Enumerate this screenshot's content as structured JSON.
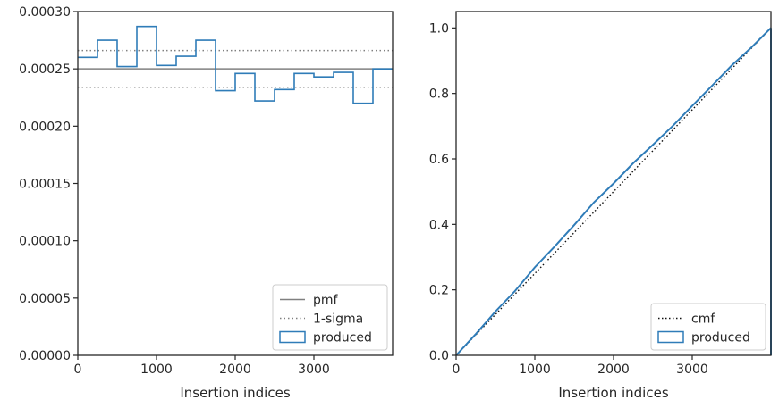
{
  "chart_data": [
    {
      "type": "step",
      "xlabel": "Insertion indices",
      "ylabel": "",
      "xlim": [
        0,
        4000
      ],
      "ylim": [
        0,
        0.0003
      ],
      "xticks": [
        0,
        1000,
        2000,
        3000
      ],
      "yticks": [
        0,
        5e-05,
        0.0001,
        0.00015,
        0.0002,
        0.00025,
        0.0003
      ],
      "ytick_labels": [
        "0.00000",
        "0.00005",
        "0.00010",
        "0.00015",
        "0.00020",
        "0.00025",
        "0.00030"
      ],
      "reference_lines": {
        "pmf": 0.00025,
        "sigma_upper": 0.000266,
        "sigma_lower": 0.000234
      },
      "series": [
        {
          "name": "produced",
          "bin_edges": [
            0,
            250,
            500,
            750,
            1000,
            1250,
            1500,
            1750,
            2000,
            2250,
            2500,
            2750,
            3000,
            3250,
            3500,
            3750,
            4000
          ],
          "values": [
            0.00026,
            0.000275,
            0.000252,
            0.000287,
            0.000253,
            0.000261,
            0.000275,
            0.000231,
            0.000246,
            0.000222,
            0.000232,
            0.000246,
            0.000243,
            0.000247,
            0.00022,
            0.00025
          ]
        }
      ],
      "legend": {
        "position": "lower-right",
        "entries": [
          {
            "label": "pmf",
            "style": "solid-gray"
          },
          {
            "label": "1-sigma",
            "style": "dotted-gray"
          },
          {
            "label": "produced",
            "style": "box-blue"
          }
        ]
      },
      "colors": {
        "produced": "#2f7cb8",
        "pmf": "#808080",
        "sigma": "#808080"
      }
    },
    {
      "type": "line",
      "xlabel": "Insertion indices",
      "ylabel": "",
      "xlim": [
        0,
        4000
      ],
      "ylim": [
        0,
        1.05
      ],
      "xticks": [
        0,
        1000,
        2000,
        3000
      ],
      "yticks": [
        0,
        0.2,
        0.4,
        0.6,
        0.8,
        1.0
      ],
      "ytick_labels": [
        "0.0",
        "0.2",
        "0.4",
        "0.6",
        "0.8",
        "1.0"
      ],
      "series": [
        {
          "name": "cmf",
          "x": [
            0,
            4000
          ],
          "y": [
            0,
            1.0
          ]
        },
        {
          "name": "produced",
          "x": [
            0,
            250,
            500,
            750,
            1000,
            1250,
            1500,
            1750,
            2000,
            2250,
            2500,
            2750,
            3000,
            3250,
            3500,
            3750,
            4000
          ],
          "y": [
            0,
            0.065,
            0.134,
            0.197,
            0.269,
            0.332,
            0.398,
            0.467,
            0.525,
            0.587,
            0.643,
            0.7,
            0.762,
            0.823,
            0.885,
            0.94,
            1.0
          ]
        }
      ],
      "legend": {
        "position": "lower-right",
        "entries": [
          {
            "label": "cmf",
            "style": "dotted-black"
          },
          {
            "label": "produced",
            "style": "box-blue"
          }
        ]
      },
      "colors": {
        "produced": "#2f7cb8",
        "cmf": "#111111"
      }
    }
  ]
}
